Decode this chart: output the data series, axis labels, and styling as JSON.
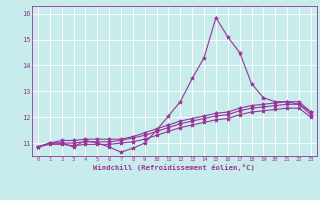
{
  "title": "",
  "xlabel": "Windchill (Refroidissement éolien,°C)",
  "bg_color": "#c8ecec",
  "line_color": "#993399",
  "grid_color": "#ffffff",
  "xlim": [
    -0.5,
    23.5
  ],
  "ylim": [
    10.5,
    16.3
  ],
  "yticks": [
    11,
    12,
    13,
    14,
    15,
    16
  ],
  "xticks": [
    0,
    1,
    2,
    3,
    4,
    5,
    6,
    7,
    8,
    9,
    10,
    11,
    12,
    13,
    14,
    15,
    16,
    17,
    18,
    19,
    20,
    21,
    22,
    23
  ],
  "series1_x": [
    0,
    1,
    2,
    3,
    4,
    5,
    6,
    7,
    8,
    9,
    10,
    11,
    12,
    13,
    14,
    15,
    16,
    17,
    18,
    19,
    20,
    21,
    22,
    23
  ],
  "series1_y": [
    10.85,
    11.0,
    11.0,
    10.85,
    11.1,
    11.0,
    10.85,
    10.65,
    10.8,
    11.0,
    11.5,
    12.05,
    12.6,
    13.5,
    14.3,
    15.85,
    15.1,
    14.5,
    13.3,
    12.75,
    12.6,
    12.6,
    12.5,
    12.2
  ],
  "series2_x": [
    0,
    1,
    2,
    3,
    4,
    5,
    6,
    7,
    8,
    9,
    10,
    11,
    12,
    13,
    14,
    15,
    16,
    17,
    18,
    19,
    20,
    21,
    22,
    23
  ],
  "series2_y": [
    10.85,
    11.0,
    11.1,
    11.1,
    11.15,
    11.15,
    11.15,
    11.15,
    11.25,
    11.4,
    11.55,
    11.7,
    11.85,
    11.95,
    12.05,
    12.15,
    12.2,
    12.35,
    12.45,
    12.5,
    12.55,
    12.6,
    12.6,
    12.2
  ],
  "series3_x": [
    0,
    1,
    2,
    3,
    4,
    5,
    6,
    7,
    8,
    9,
    10,
    11,
    12,
    13,
    14,
    15,
    16,
    17,
    18,
    19,
    20,
    21,
    22,
    23
  ],
  "series3_y": [
    10.85,
    11.0,
    11.0,
    11.0,
    11.05,
    11.05,
    11.05,
    11.1,
    11.2,
    11.3,
    11.45,
    11.6,
    11.75,
    11.85,
    11.95,
    12.05,
    12.1,
    12.25,
    12.35,
    12.4,
    12.45,
    12.5,
    12.5,
    12.1
  ],
  "series4_x": [
    0,
    1,
    2,
    3,
    4,
    5,
    6,
    7,
    8,
    9,
    10,
    11,
    12,
    13,
    14,
    15,
    16,
    17,
    18,
    19,
    20,
    21,
    22,
    23
  ],
  "series4_y": [
    10.85,
    10.95,
    10.95,
    10.9,
    10.95,
    10.95,
    10.95,
    11.0,
    11.05,
    11.15,
    11.3,
    11.45,
    11.6,
    11.7,
    11.8,
    11.9,
    11.95,
    12.1,
    12.2,
    12.25,
    12.3,
    12.35,
    12.35,
    12.0
  ]
}
